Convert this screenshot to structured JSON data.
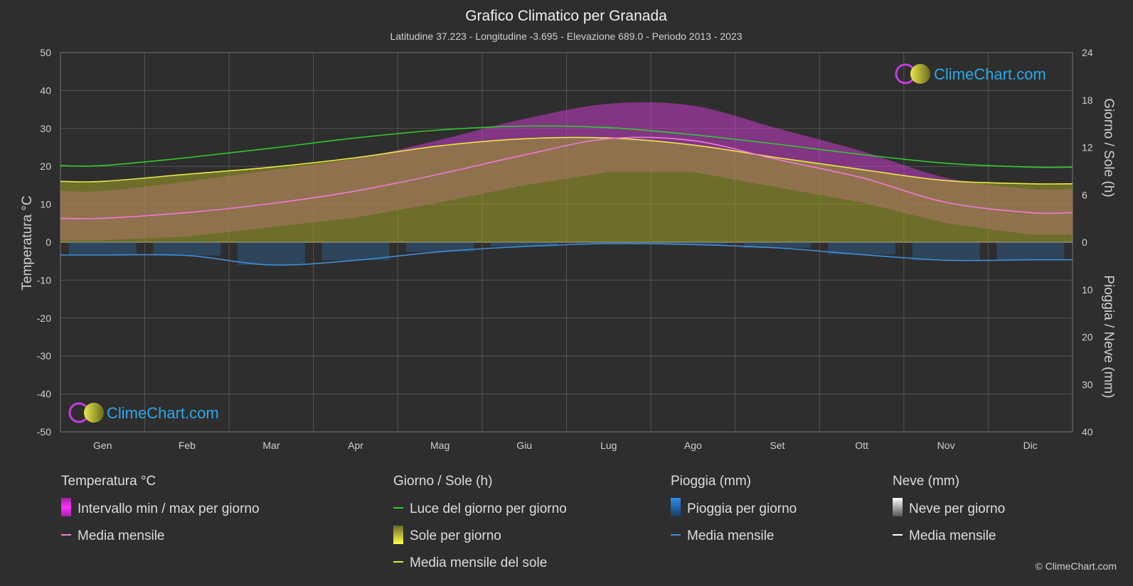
{
  "chart_data": {
    "type": "area",
    "title": "Grafico Climatico per Granada",
    "subtitle": "Latitudine 37.223 - Longitudine -3.695 - Elevazione 689.0 - Periodo 2013 - 2023",
    "months": [
      "Gen",
      "Feb",
      "Mar",
      "Apr",
      "Mag",
      "Giu",
      "Lug",
      "Ago",
      "Set",
      "Ott",
      "Nov",
      "Dic"
    ],
    "left_axis": {
      "label": "Temperatura °C",
      "range": [
        -50,
        50
      ],
      "ticks": [
        50,
        40,
        30,
        20,
        10,
        0,
        -10,
        -20,
        -30,
        -40,
        -50
      ]
    },
    "right_axis_top": {
      "label": "Giorno / Sole (h)",
      "range": [
        0,
        24
      ],
      "ticks": [
        24,
        18,
        12,
        6,
        0
      ]
    },
    "right_axis_bottom": {
      "label": "Pioggia / Neve (mm)",
      "range": [
        0,
        40
      ],
      "ticks": [
        10,
        20,
        30,
        40
      ]
    },
    "series": [
      {
        "name": "Luce del giorno per giorno",
        "unit": "h",
        "color": "#2ecc2e",
        "values": [
          9.7,
          10.7,
          11.9,
          13.2,
          14.2,
          14.7,
          14.5,
          13.6,
          12.4,
          11.1,
          10.0,
          9.5
        ]
      },
      {
        "name": "Media mensile del sole",
        "unit": "h",
        "color": "#e8e84a",
        "values": [
          7.7,
          8.6,
          9.5,
          10.7,
          12.2,
          13.1,
          13.2,
          12.3,
          10.7,
          9.2,
          7.8,
          7.4
        ]
      },
      {
        "name": "Media mensile",
        "group": "Temperatura °C",
        "unit": "°C",
        "color": "#f07ad8",
        "values": [
          6.3,
          7.8,
          10.2,
          13.5,
          18.0,
          23.0,
          27.3,
          26.8,
          21.8,
          17.0,
          10.5,
          7.8
        ]
      },
      {
        "name": "Intervallo min / max per giorno",
        "unit": "°C",
        "min": [
          0.5,
          1.5,
          4.0,
          6.5,
          10.5,
          15.0,
          18.5,
          18.5,
          14.5,
          10.5,
          5.0,
          2.0
        ],
        "max": [
          13.5,
          16.0,
          19.0,
          22.0,
          27.0,
          32.5,
          36.5,
          36.0,
          30.0,
          24.0,
          17.0,
          14.0
        ]
      },
      {
        "name": "Media mensile",
        "group": "Pioggia (mm)",
        "unit": "mm",
        "color": "#3f8fd8",
        "values": [
          2.7,
          2.8,
          4.8,
          3.8,
          2.0,
          0.9,
          0.3,
          0.5,
          1.2,
          2.6,
          3.8,
          3.7
        ]
      }
    ],
    "legend": [
      {
        "heading": "Temperatura °C",
        "items": [
          "Intervallo min / max per giorno",
          "Media mensile"
        ]
      },
      {
        "heading": "Giorno / Sole (h)",
        "items": [
          "Luce del giorno per giorno",
          "Sole per giorno",
          "Media mensile del sole"
        ]
      },
      {
        "heading": "Pioggia (mm)",
        "items": [
          "Pioggia per giorno",
          "Media mensile"
        ]
      },
      {
        "heading": "Neve (mm)",
        "items": [
          "Neve per giorno",
          "Media mensile"
        ]
      }
    ],
    "grid": true,
    "brand": "ClimeChart.com",
    "copyright": "© ClimeChart.com"
  },
  "colors": {
    "background": "#2e2e2e",
    "temp_range": "#c83cc8",
    "temp_range_mid": "#e070c8",
    "sun_fill": "#9a9a2a",
    "rain": "#2f6fb0",
    "snow": "#ffffff",
    "grid": "#555555"
  }
}
